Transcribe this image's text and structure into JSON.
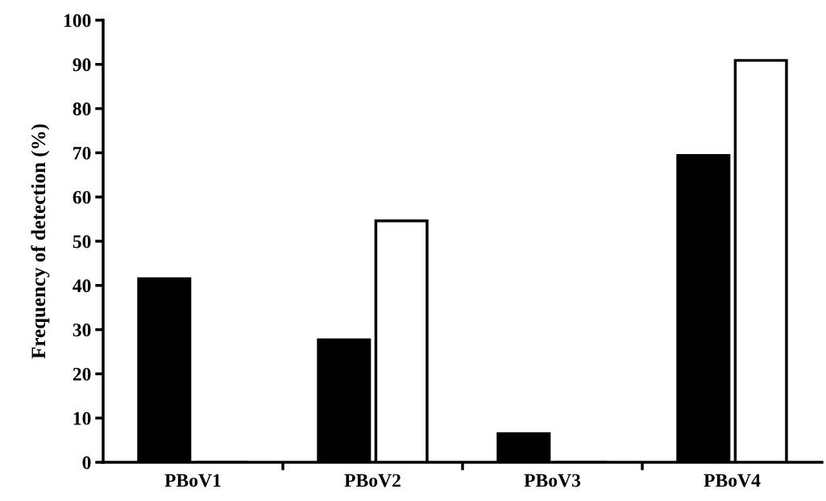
{
  "chart_data": {
    "type": "bar",
    "ylabel": "Frequency of detection (%)",
    "categories": [
      "PBoV1",
      "PBoV2",
      "PBoV3",
      "PBoV4"
    ],
    "series": [
      {
        "color": "#000000",
        "values": [
          41.5,
          27.7,
          6.5,
          69.4
        ]
      },
      {
        "color": "#ffffff",
        "values": [
          0,
          54.6,
          0,
          90.9
        ]
      }
    ],
    "ylim": [
      0,
      100
    ],
    "yticks": [
      0,
      10,
      20,
      30,
      40,
      50,
      60,
      70,
      80,
      90,
      100
    ],
    "grid": false,
    "legend": false
  }
}
